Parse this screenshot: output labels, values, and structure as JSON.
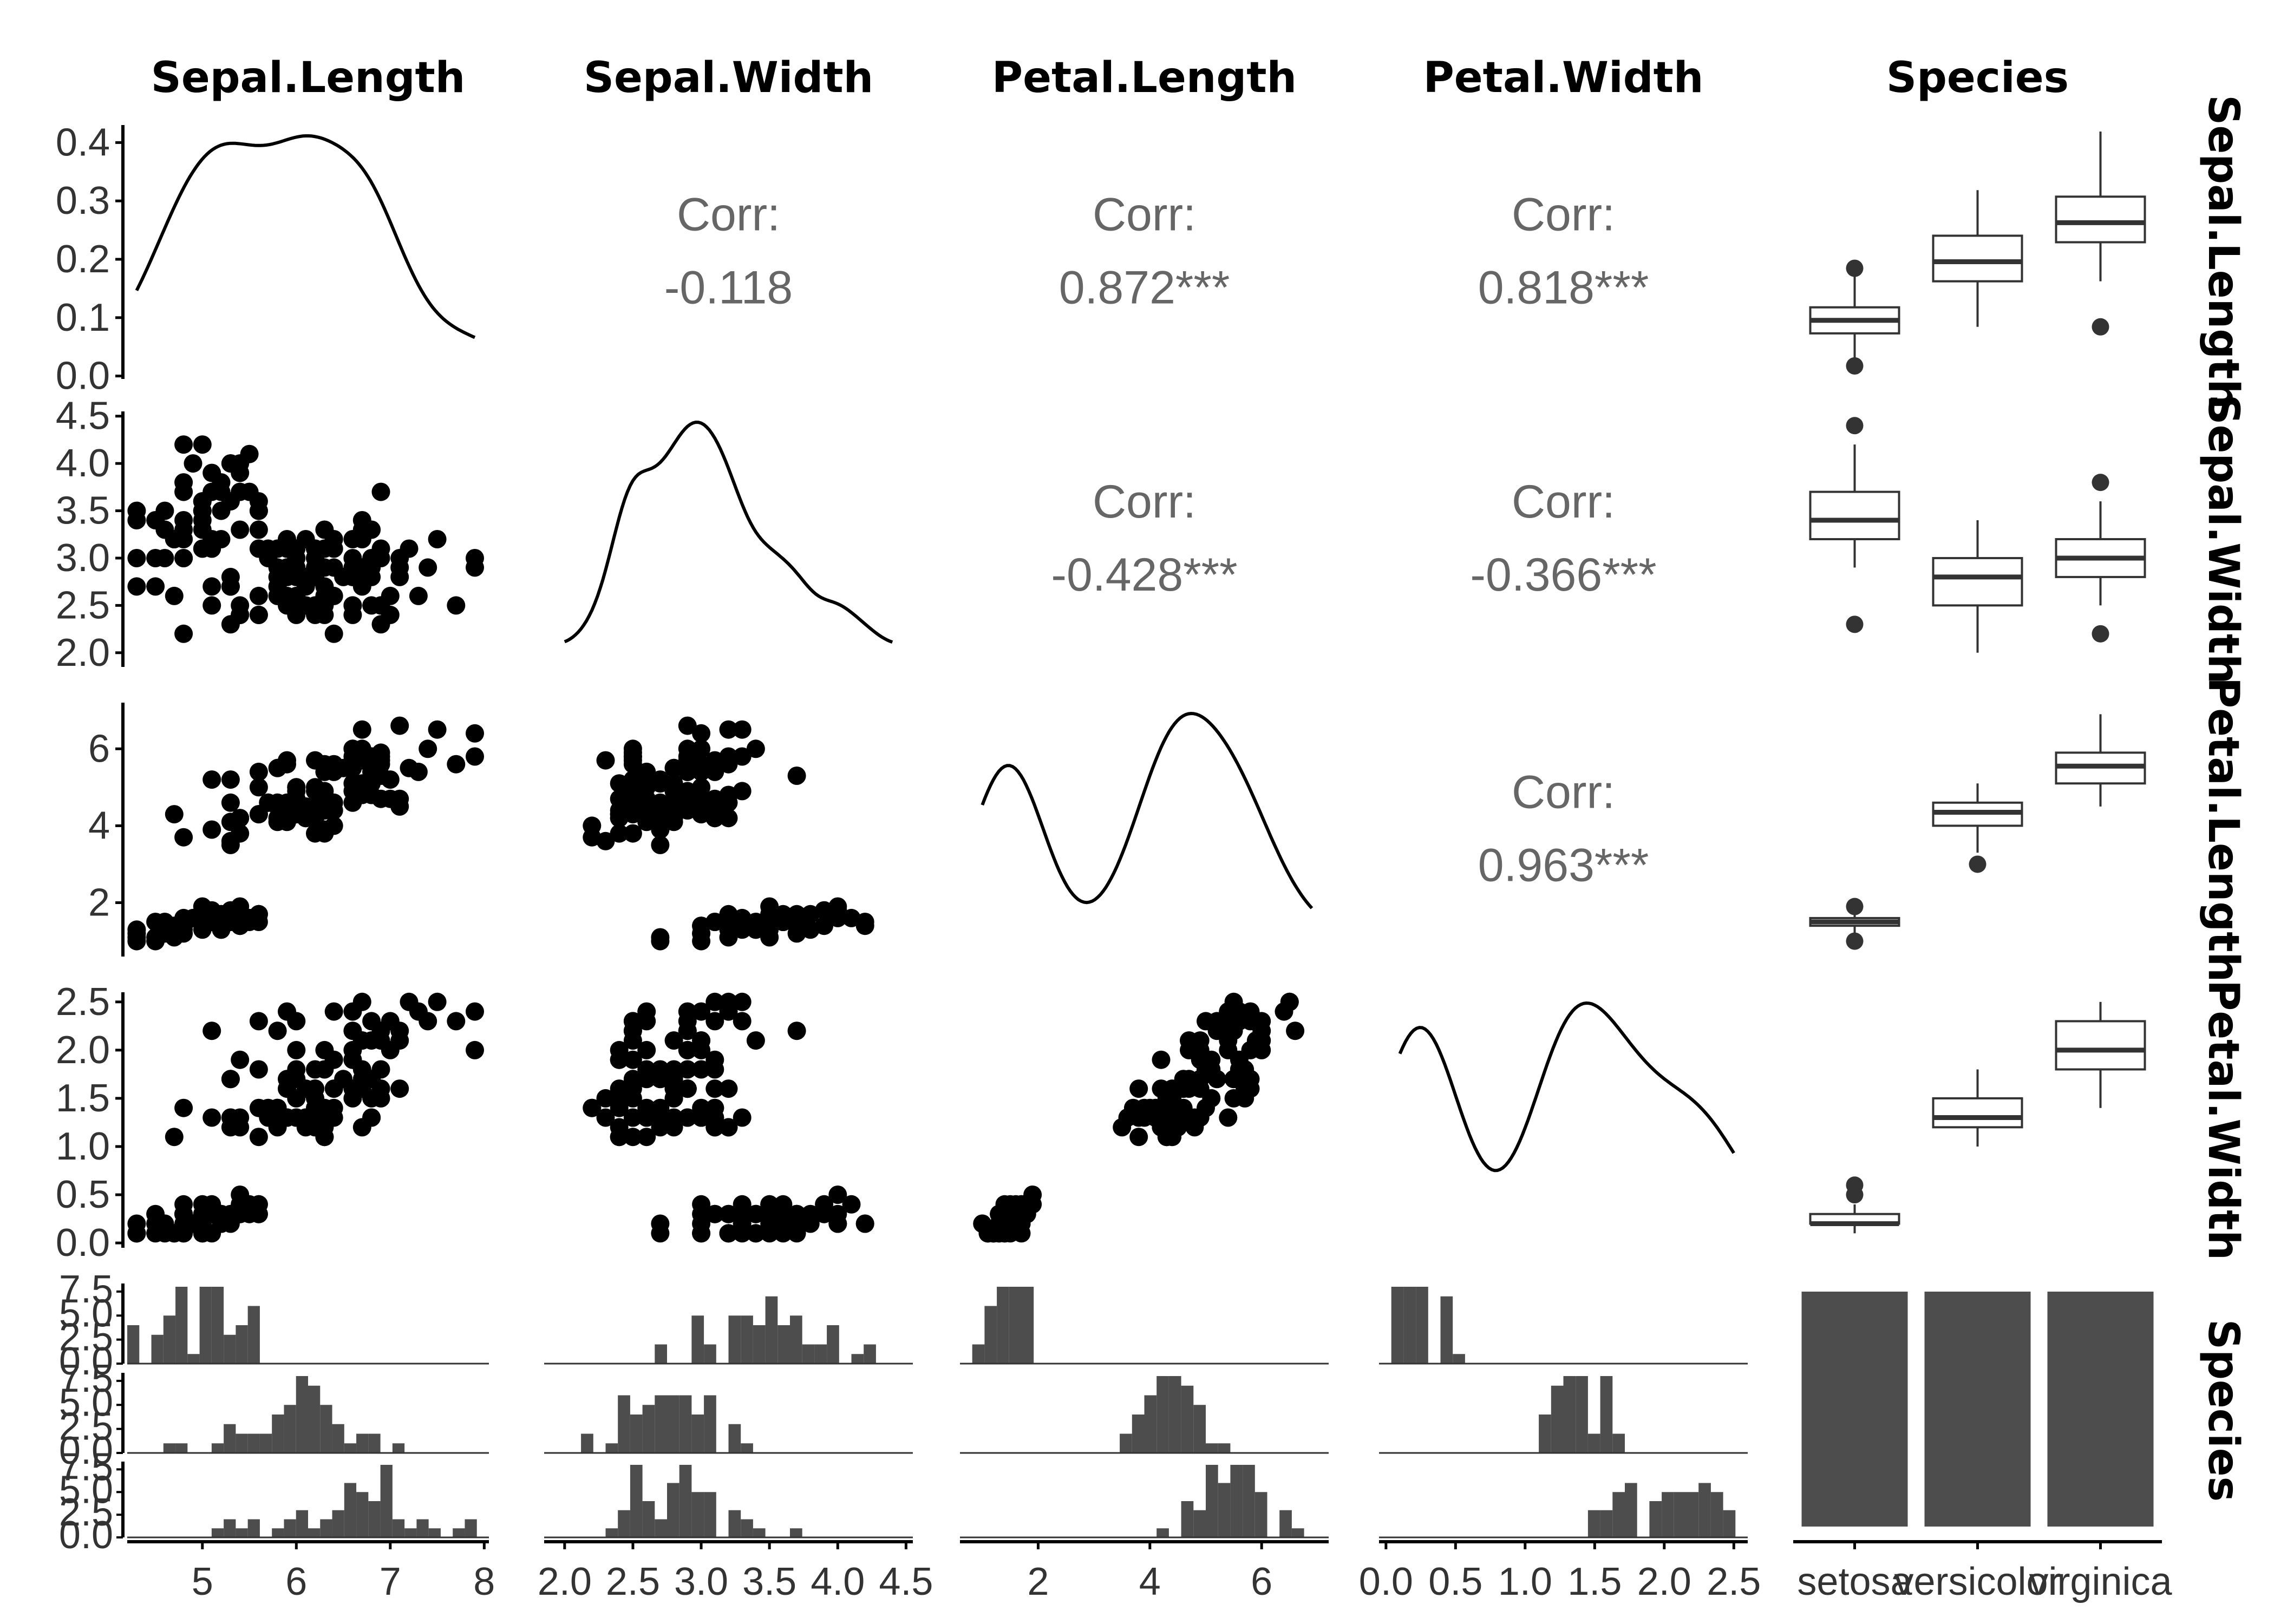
{
  "variables": [
    "Sepal.Length",
    "Sepal.Width",
    "Petal.Length",
    "Petal.Width",
    "Species"
  ],
  "species_levels": [
    "setosa",
    "versicolor",
    "virginica"
  ],
  "colors": {
    "points": "#000000",
    "bars": "#4d4d4d",
    "corr_text": "#666666",
    "axis": "#000000",
    "tick_text": "#333333"
  },
  "chart_data": {
    "type": "scatter",
    "title": "",
    "strip_labels_top": [
      "Sepal.Length",
      "Sepal.Width",
      "Petal.Length",
      "Petal.Width",
      "Species"
    ],
    "strip_labels_right": [
      "Sepal.Length",
      "Sepal.Width",
      "Petal.Length",
      "Petal.Width",
      "Species"
    ],
    "x_ticks": [
      [
        "5",
        "6",
        "7",
        "8"
      ],
      [
        "2.0",
        "2.5",
        "3.0",
        "3.5",
        "4.0",
        "4.5"
      ],
      [
        "2",
        "4",
        "6"
      ],
      [
        "0.0",
        "0.5",
        "1.0",
        "1.5",
        "2.0",
        "2.5"
      ],
      [
        "setosa",
        "versicolor",
        "virginica"
      ]
    ],
    "y_ticks": [
      [
        "0.0",
        "0.1",
        "0.2",
        "0.3",
        "0.4"
      ],
      [
        "2.0",
        "2.5",
        "3.0",
        "3.5",
        "4.0",
        "4.5"
      ],
      [
        "2",
        "4",
        "6"
      ],
      [
        "0.0",
        "0.5",
        "1.0",
        "1.5",
        "2.0",
        "2.5"
      ],
      [
        "0.0",
        "2.5",
        "5.0",
        "7.5"
      ]
    ],
    "correlations": [
      {
        "row": 0,
        "col": 1,
        "label": "Corr:",
        "value": "-0.118"
      },
      {
        "row": 0,
        "col": 2,
        "label": "Corr:",
        "value": "0.872***"
      },
      {
        "row": 0,
        "col": 3,
        "label": "Corr:",
        "value": "0.818***"
      },
      {
        "row": 1,
        "col": 2,
        "label": "Corr:",
        "value": "-0.428***"
      },
      {
        "row": 1,
        "col": 3,
        "label": "Corr:",
        "value": "-0.366***"
      },
      {
        "row": 2,
        "col": 3,
        "label": "Corr:",
        "value": "0.963***"
      }
    ],
    "boxplots": {
      "Sepal.Length": [
        [
          4.3,
          4.8,
          5.0,
          5.2,
          5.8,
          [
            4.3,
            5.8
          ]
        ],
        [
          4.9,
          5.6,
          5.9,
          6.3,
          7.0,
          []
        ],
        [
          5.6,
          6.2,
          6.5,
          6.9,
          7.9,
          [
            4.9
          ]
        ]
      ],
      "Sepal.Width": [
        [
          2.9,
          3.2,
          3.4,
          3.7,
          4.2,
          [
            2.3,
            4.4
          ]
        ],
        [
          2.0,
          2.5,
          2.8,
          3.0,
          3.4,
          []
        ],
        [
          2.5,
          2.8,
          3.0,
          3.2,
          3.6,
          [
            2.2,
            3.8
          ]
        ]
      ],
      "Petal.Length": [
        [
          1.1,
          1.4,
          1.5,
          1.6,
          1.7,
          [
            1.0,
            1.9
          ]
        ],
        [
          3.3,
          4.0,
          4.35,
          4.6,
          5.1,
          [
            3.0
          ]
        ],
        [
          4.5,
          5.1,
          5.55,
          5.9,
          6.9,
          []
        ]
      ],
      "Petal.Width": [
        [
          0.1,
          0.2,
          0.2,
          0.3,
          0.4,
          [
            0.5,
            0.6
          ]
        ],
        [
          1.0,
          1.2,
          1.3,
          1.5,
          1.8,
          []
        ],
        [
          1.4,
          1.8,
          2.0,
          2.3,
          2.5,
          []
        ]
      ]
    },
    "species_counts": [
      50,
      50,
      50
    ]
  }
}
